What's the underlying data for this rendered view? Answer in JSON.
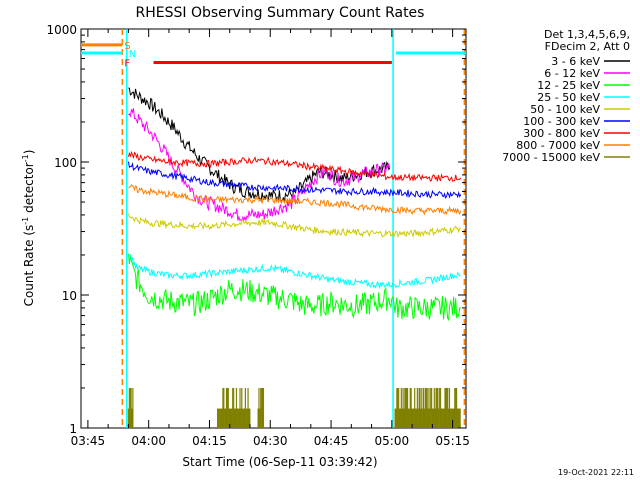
{
  "chart_data": {
    "type": "line",
    "title": "RHESSI Observing Summary Count Rates",
    "xlabel": "Start Time (06-Sep-11 03:39:42)",
    "ylabel_main": "Count Rate (s",
    "ylabel_sup1": "-1",
    "ylabel_mid": " detector",
    "ylabel_sup2": "-1",
    "ylabel_end": ")",
    "ylabel": "Count Rate (s-1 detector-1)",
    "yscale": "log",
    "ylim": [
      1,
      1000
    ],
    "xlim_minutes": [
      3.3,
      98.3
    ],
    "x_ticks": [
      {
        "label": "03:45",
        "min": 5
      },
      {
        "label": "04:00",
        "min": 20
      },
      {
        "label": "04:15",
        "min": 35
      },
      {
        "label": "04:30",
        "min": 50
      },
      {
        "label": "04:45",
        "min": 65
      },
      {
        "label": "05:00",
        "min": 80
      },
      {
        "label": "05:15",
        "min": 95
      }
    ],
    "y_ticks": [
      {
        "label": "1",
        "v": 1
      },
      {
        "label": "10",
        "v": 10
      },
      {
        "label": "100",
        "v": 100
      },
      {
        "label": "1000",
        "v": 1000
      }
    ],
    "legend_header": [
      "Det 1,3,4,5,6,9,",
      "FDecim 2, Att 0"
    ],
    "legend_position": "right",
    "flags": [
      {
        "letter": "S",
        "color": "#ff7f00",
        "y": 760,
        "x_start": 3.3,
        "x_end": 13.5
      },
      {
        "letter": "N",
        "color": "#00ffff",
        "y": 660,
        "segments": [
          [
            3.3,
            13.5
          ],
          [
            81,
            98.3
          ]
        ]
      },
      {
        "letter": "F",
        "color": "#ff0000",
        "y": 560,
        "x_start": 21.2,
        "x_end": 80
      }
    ],
    "vertical_markers": [
      {
        "x": 13.5,
        "color": "#ff7f00",
        "style": "dashed"
      },
      {
        "x": 14.6,
        "color": "#00ffff",
        "style": "solid"
      },
      {
        "x": 80.3,
        "color": "#00ffff",
        "style": "solid"
      },
      {
        "x": 97.9,
        "color": "#ff7f00",
        "style": "dashed"
      }
    ],
    "series": [
      {
        "name": "3 - 6 keV",
        "color": "#000000",
        "x": [
          15,
          17,
          20,
          23,
          26,
          29,
          32,
          35,
          38,
          41,
          44,
          47,
          50,
          53,
          56,
          59,
          62,
          65,
          68,
          71,
          74,
          77,
          79.5
        ],
        "y": [
          360,
          320,
          280,
          230,
          185,
          140,
          110,
          90,
          75,
          65,
          60,
          58,
          56,
          56,
          58,
          70,
          85,
          80,
          75,
          80,
          85,
          88,
          90
        ]
      },
      {
        "name": "6 - 12 keV",
        "color": "#ff00ff",
        "x": [
          15,
          18,
          21,
          24,
          26,
          28,
          30,
          32,
          34,
          36,
          38,
          40,
          42,
          44,
          46,
          48,
          50,
          52,
          55,
          57,
          58,
          60,
          62,
          64,
          66,
          68,
          70,
          72,
          75,
          78,
          79.5
        ],
        "y": [
          250,
          200,
          160,
          120,
          95,
          80,
          65,
          55,
          50,
          48,
          45,
          43,
          40,
          40,
          40,
          40,
          42,
          45,
          48,
          55,
          60,
          70,
          80,
          85,
          75,
          72,
          75,
          80,
          85,
          88,
          90
        ]
      },
      {
        "name": "12 - 25 keV",
        "color": "#00ff00",
        "x": [
          15,
          16,
          18,
          20,
          22,
          25,
          28,
          31,
          34,
          37,
          40,
          43,
          46,
          49,
          52,
          55,
          57.5,
          59,
          62,
          65,
          68,
          71,
          74,
          77,
          80,
          81,
          84,
          87,
          90,
          94,
          97
        ],
        "y": [
          20,
          15,
          12,
          10,
          9.5,
          9,
          8.8,
          8.5,
          9,
          10,
          11,
          11,
          10.5,
          10,
          9.5,
          9.2,
          8.5,
          8.3,
          8.3,
          8.8,
          8.5,
          8.3,
          8.5,
          9,
          9.5,
          8,
          8,
          8,
          8,
          8,
          8
        ]
      },
      {
        "name": "25 - 50 keV",
        "color": "#00ffff",
        "x": [
          15,
          17,
          20,
          25,
          30,
          35,
          40,
          45,
          50,
          55,
          60,
          65,
          70,
          75,
          80,
          85,
          90,
          95,
          97
        ],
        "y": [
          21,
          16,
          15,
          14,
          14,
          14.5,
          15,
          15.5,
          16,
          15,
          14,
          13,
          12.5,
          12,
          12,
          12.5,
          13,
          14,
          14
        ]
      },
      {
        "name": "50 - 100 keV",
        "color": "#cccc00",
        "x": [
          15,
          17,
          20,
          25,
          30,
          35,
          40,
          45,
          50,
          55,
          60,
          65,
          70,
          75,
          80,
          85,
          90,
          95,
          97
        ],
        "y": [
          40,
          37,
          35,
          34,
          33,
          33,
          34,
          35,
          35,
          33,
          31,
          30,
          29.5,
          29,
          29,
          29,
          30,
          31,
          32
        ]
      },
      {
        "name": "100 - 300 keV",
        "color": "#0000ff",
        "x": [
          15,
          17,
          20,
          25,
          30,
          35,
          40,
          45,
          50,
          55,
          60,
          65,
          70,
          75,
          80,
          85,
          90,
          95,
          97
        ],
        "y": [
          95,
          90,
          85,
          80,
          75,
          70,
          68,
          65,
          64,
          63,
          62,
          61,
          60,
          60,
          59,
          58,
          57,
          57,
          57
        ]
      },
      {
        "name": "300 - 800 keV",
        "color": "#ff0000",
        "x": [
          15,
          17,
          20,
          25,
          30,
          35,
          40,
          45,
          50,
          55,
          60,
          65,
          70,
          75,
          80,
          85,
          90,
          95,
          97
        ],
        "y": [
          115,
          110,
          105,
          100,
          98,
          97,
          100,
          103,
          101,
          97,
          92,
          88,
          84,
          80,
          77,
          76,
          76,
          76,
          76
        ]
      },
      {
        "name": "800 - 7000 keV",
        "color": "#ff7f00",
        "x": [
          15,
          17,
          20,
          25,
          30,
          35,
          40,
          45,
          50,
          55,
          60,
          65,
          70,
          75,
          80,
          85,
          90,
          95,
          97
        ],
        "y": [
          65,
          62,
          60,
          57,
          54,
          52,
          52,
          52,
          52,
          51,
          50,
          49,
          47,
          45,
          44,
          43,
          43,
          43,
          43
        ]
      },
      {
        "name": "7000 - 15000 keV",
        "color": "#808000",
        "bursts": [
          [
            15,
            16.2
          ],
          [
            37,
            41
          ],
          [
            41,
            45
          ],
          [
            47,
            48.5
          ],
          [
            80.8,
            97
          ]
        ],
        "burst_level": 2,
        "baseline": 1
      }
    ]
  },
  "footer_date": "19-Oct-2021 22:11"
}
